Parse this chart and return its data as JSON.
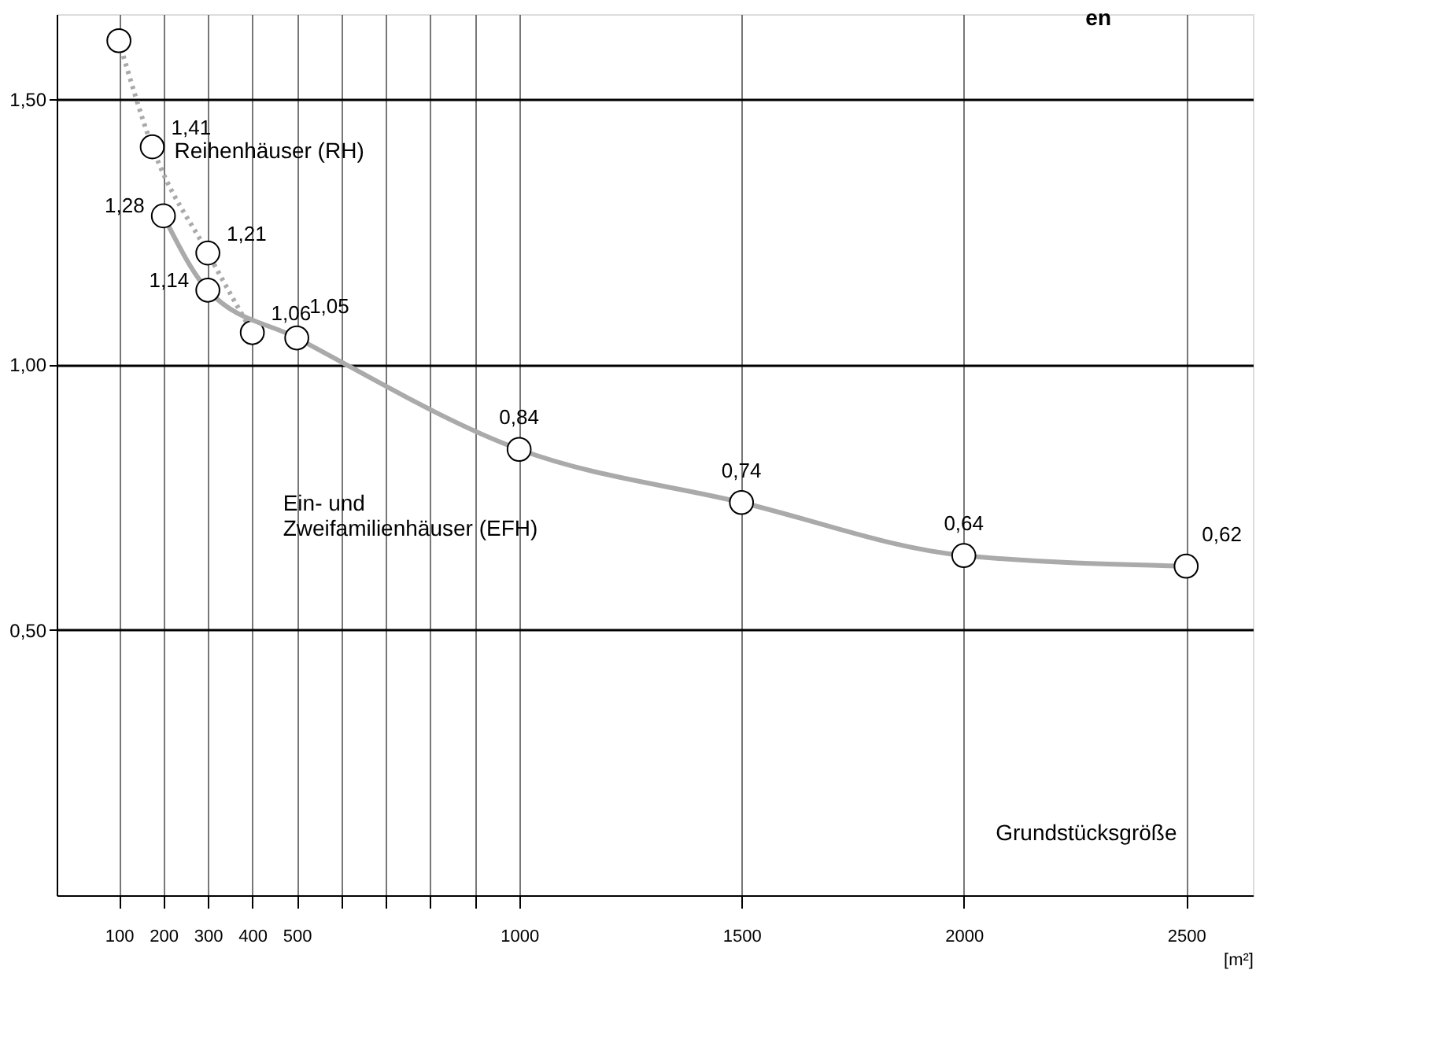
{
  "chart_data": {
    "type": "line",
    "title": "en",
    "xlabel": "[m²]",
    "annotations": [
      "Grundstücksgröße"
    ],
    "xlim": [
      -40,
      2650
    ],
    "ylim": [
      0,
      1.66
    ],
    "xticks": [
      100,
      200,
      300,
      400,
      500,
      {
        "value": 600,
        "label": null
      },
      {
        "value": 700,
        "label": null
      },
      {
        "value": 800,
        "label": null
      },
      {
        "value": 900,
        "label": null
      },
      1000,
      1500,
      2000,
      2500
    ],
    "yticks": [
      {
        "value": 0.5,
        "label": "0,50"
      },
      {
        "value": 1.0,
        "label": "1,00"
      },
      {
        "value": 1.5,
        "label": "1,50"
      }
    ],
    "grid": true,
    "marker": "circle",
    "series": [
      {
        "name": "Reihenhäuser (RH)",
        "color": "#aaaaaa",
        "line_style": "dotted",
        "x": [
          100,
          175,
          300,
          400
        ],
        "values": [
          1.61,
          1.41,
          1.21,
          1.06
        ],
        "value_labels": [
          null,
          "1,41",
          "1,21",
          "1,06"
        ]
      },
      {
        "name": "Ein- und Zweifamilienhäuser (EFH)",
        "color": "#aaaaaa",
        "line_style": "solid",
        "x": [
          200,
          300,
          500,
          1000,
          1500,
          2000,
          2500
        ],
        "values": [
          1.28,
          1.14,
          1.05,
          0.84,
          0.74,
          0.64,
          0.62
        ],
        "value_labels": [
          "1,28",
          "1,14",
          "1,05",
          "0,84",
          "0,74",
          "0,64",
          "0,62"
        ]
      }
    ]
  }
}
